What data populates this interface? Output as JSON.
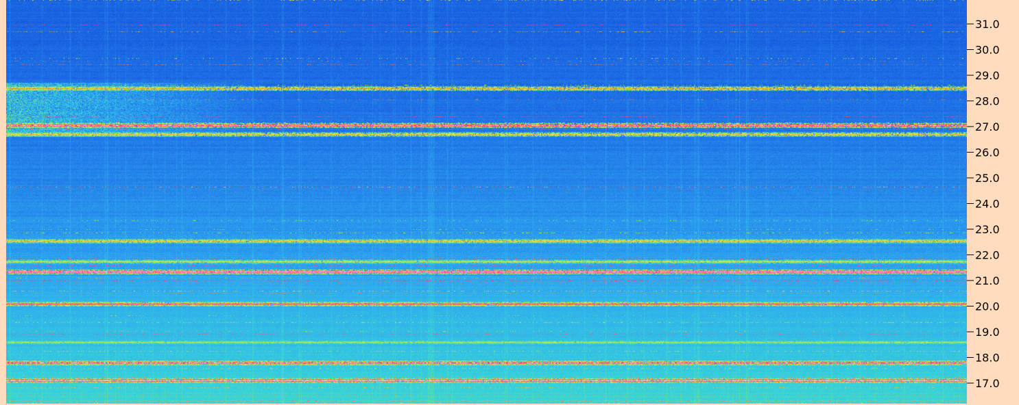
{
  "chart_data": {
    "type": "heatmap",
    "title": "",
    "xlabel": "",
    "ylabel": "",
    "y_axis_position": "right",
    "y_ticks": [
      31.0,
      30.0,
      29.0,
      28.0,
      27.0,
      26.0,
      25.0,
      24.0,
      23.0,
      22.0,
      21.0,
      20.0,
      19.0,
      18.0,
      17.0
    ],
    "y_tick_labels": [
      "31.0",
      "30.0",
      "29.0",
      "28.0",
      "27.0",
      "26.0",
      "25.0",
      "24.0",
      "23.0",
      "22.0",
      "21.0",
      "20.0",
      "19.0",
      "18.0",
      "17.0"
    ],
    "ylim": [
      16.25,
      32.0
    ],
    "colormap": [
      "#0a3ccf",
      "#1e6ee6",
      "#2ea8f0",
      "#38d6d8",
      "#8ee85a",
      "#e6f03c",
      "#ff8c2a",
      "#ff1e8c",
      "#ffffff"
    ],
    "axis_background": "#ffdcbe",
    "strong_signals": [
      {
        "y": 27.05,
        "level": 0.95
      },
      {
        "y": 21.35,
        "level": 1.0
      },
      {
        "y": 17.8,
        "level": 0.95
      },
      {
        "y": 17.1,
        "level": 1.0
      },
      {
        "y": 20.1,
        "level": 0.85
      },
      {
        "y": 28.5,
        "level": 0.75
      },
      {
        "y": 22.55,
        "level": 0.7
      },
      {
        "y": 26.7,
        "level": 0.7
      },
      {
        "y": 21.75,
        "level": 0.6
      },
      {
        "y": 18.6,
        "level": 0.55
      }
    ],
    "grid": false,
    "legend": "none"
  }
}
